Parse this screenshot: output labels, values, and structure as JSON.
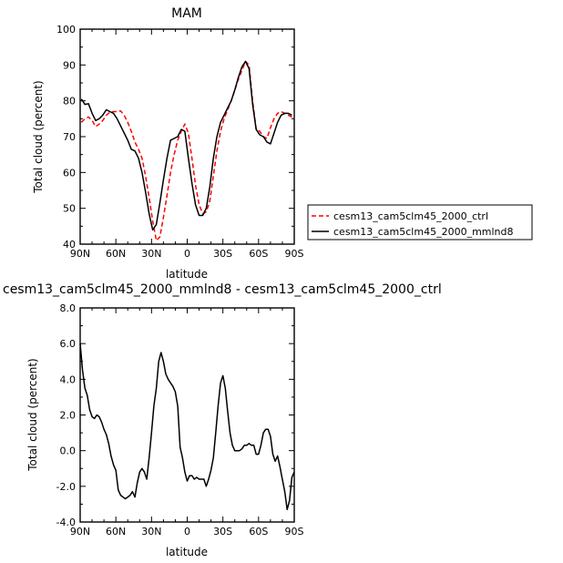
{
  "chart_data": [
    {
      "type": "line",
      "title": "MAM",
      "xlabel": "latitude",
      "ylabel": "Total cloud (percent)",
      "xlim": [
        -90,
        90
      ],
      "ylim": [
        40,
        100
      ],
      "x_ticks": [
        "90N",
        "60N",
        "30N",
        "0",
        "30S",
        "60S",
        "90S"
      ],
      "y_ticks": [
        "40",
        "50",
        "60",
        "70",
        "80",
        "90",
        "100"
      ],
      "legend_position": "right",
      "series": [
        {
          "name": "cesm13_cam5clm45_2000_ctrl",
          "color": "#ff0000",
          "dash": "dashed",
          "x": [
            -89,
            -86,
            -83,
            -80,
            -77,
            -74,
            -71,
            -68,
            -65,
            -62,
            -59,
            -56,
            -53,
            -50,
            -47,
            -44,
            -41,
            -38,
            -35,
            -32,
            -29,
            -26,
            -23,
            -20,
            -17,
            -14,
            -11,
            -8,
            -5,
            -2,
            1,
            4,
            7,
            10,
            13,
            16,
            19,
            22,
            25,
            28,
            31,
            34,
            37,
            40,
            43,
            46,
            49,
            52,
            55,
            58,
            61,
            64,
            67,
            70,
            73,
            76,
            79,
            82,
            85,
            88
          ],
          "values": [
            74,
            75,
            75.5,
            74.5,
            72.8,
            73.5,
            74.5,
            76,
            76.8,
            77,
            77,
            77.2,
            76,
            74,
            71.5,
            68.5,
            66.5,
            64,
            59,
            53,
            46.5,
            41,
            42,
            47.5,
            53.5,
            60,
            65,
            69,
            71.5,
            73.5,
            71,
            64,
            56.5,
            51,
            48.5,
            49,
            52,
            59,
            66,
            71.5,
            75,
            77.5,
            80,
            83,
            86,
            88.5,
            91,
            90,
            80,
            72,
            71.5,
            70,
            69.5,
            72.5,
            75,
            76.5,
            77,
            76.5,
            76,
            75.5
          ]
        },
        {
          "name": "cesm13_cam5clm45_2000_mmlnd8",
          "color": "#000000",
          "dash": "solid",
          "x": [
            -89,
            -86,
            -83,
            -80,
            -77,
            -74,
            -71,
            -68,
            -65,
            -62,
            -59,
            -56,
            -53,
            -50,
            -47,
            -44,
            -41,
            -38,
            -35,
            -32,
            -29,
            -26,
            -23,
            -20,
            -17,
            -14,
            -11,
            -8,
            -5,
            -2,
            1,
            4,
            7,
            10,
            13,
            16,
            19,
            22,
            25,
            28,
            31,
            34,
            37,
            40,
            43,
            46,
            49,
            52,
            55,
            58,
            61,
            64,
            67,
            70,
            73,
            76,
            79,
            82,
            85,
            88
          ],
          "values": [
            80.5,
            79,
            79.2,
            76.5,
            74.5,
            75,
            76,
            77.5,
            77,
            76.5,
            75,
            73,
            71,
            69,
            66.5,
            66,
            64,
            60,
            54.5,
            48.5,
            44,
            45.5,
            51.5,
            58,
            64,
            69,
            69.5,
            70,
            72,
            71.5,
            64,
            57,
            51,
            48,
            48,
            50,
            56,
            64,
            70,
            74,
            76,
            78,
            80,
            83,
            86.5,
            89.5,
            91,
            89,
            79,
            72,
            70.5,
            70,
            68.5,
            68,
            71,
            74,
            76,
            76.5,
            76.5,
            76
          ]
        }
      ]
    },
    {
      "type": "line",
      "title": "cesm13_cam5clm45_2000_mmlnd8 - cesm13_cam5clm45_2000_ctrl",
      "xlabel": "latitude",
      "ylabel": "Total cloud (percent)",
      "xlim": [
        -90,
        90
      ],
      "ylim": [
        -4,
        8
      ],
      "x_ticks": [
        "90N",
        "60N",
        "30N",
        "0",
        "30S",
        "60S",
        "90S"
      ],
      "y_ticks": [
        "-4.0",
        "-2.0",
        "0.0",
        "2.0",
        "4.0",
        "6.0",
        "8.0"
      ],
      "series": [
        {
          "name": "",
          "color": "#000000",
          "dash": "solid",
          "x": [
            -90,
            -88,
            -86,
            -84,
            -82,
            -80,
            -78,
            -76,
            -74,
            -72,
            -70,
            -68,
            -66,
            -64,
            -62,
            -60,
            -58,
            -56,
            -54,
            -52,
            -50,
            -48,
            -46,
            -44,
            -42,
            -40,
            -38,
            -36,
            -34,
            -32,
            -30,
            -28,
            -26,
            -24,
            -22,
            -20,
            -18,
            -16,
            -14,
            -12,
            -10,
            -8,
            -6,
            -4,
            -2,
            0,
            2,
            4,
            6,
            8,
            10,
            12,
            14,
            16,
            18,
            20,
            22,
            24,
            26,
            28,
            30,
            32,
            34,
            36,
            38,
            40,
            42,
            44,
            46,
            48,
            50,
            52,
            54,
            56,
            58,
            60,
            62,
            64,
            66,
            68,
            70,
            72,
            74,
            76,
            78,
            80,
            82,
            84,
            86,
            88,
            90
          ],
          "values": [
            6,
            4.5,
            3.5,
            3.1,
            2.3,
            1.9,
            1.8,
            2,
            1.9,
            1.6,
            1.2,
            0.9,
            0.4,
            -0.3,
            -0.8,
            -1.1,
            -2.2,
            -2.5,
            -2.6,
            -2.7,
            -2.6,
            -2.5,
            -2.3,
            -2.6,
            -1.8,
            -1.2,
            -1,
            -1.2,
            -1.6,
            -0.4,
            1,
            2.5,
            3.5,
            5,
            5.5,
            5,
            4.3,
            4,
            3.8,
            3.6,
            3.3,
            2.5,
            0.2,
            -0.4,
            -1.2,
            -1.7,
            -1.4,
            -1.4,
            -1.6,
            -1.5,
            -1.6,
            -1.6,
            -1.6,
            -2,
            -1.6,
            -1.1,
            -0.4,
            1,
            2.5,
            3.8,
            4.2,
            3.5,
            2.2,
            1,
            0.3,
            0,
            0,
            0,
            0.1,
            0.3,
            0.3,
            0.4,
            0.3,
            0.3,
            -0.2,
            -0.2,
            0.3,
            1,
            1.2,
            1.2,
            0.8,
            -0.2,
            -0.6,
            -0.3,
            -0.9,
            -1.6,
            -2.3,
            -3.3,
            -2.8,
            -1.5,
            -1.2
          ]
        }
      ]
    }
  ]
}
